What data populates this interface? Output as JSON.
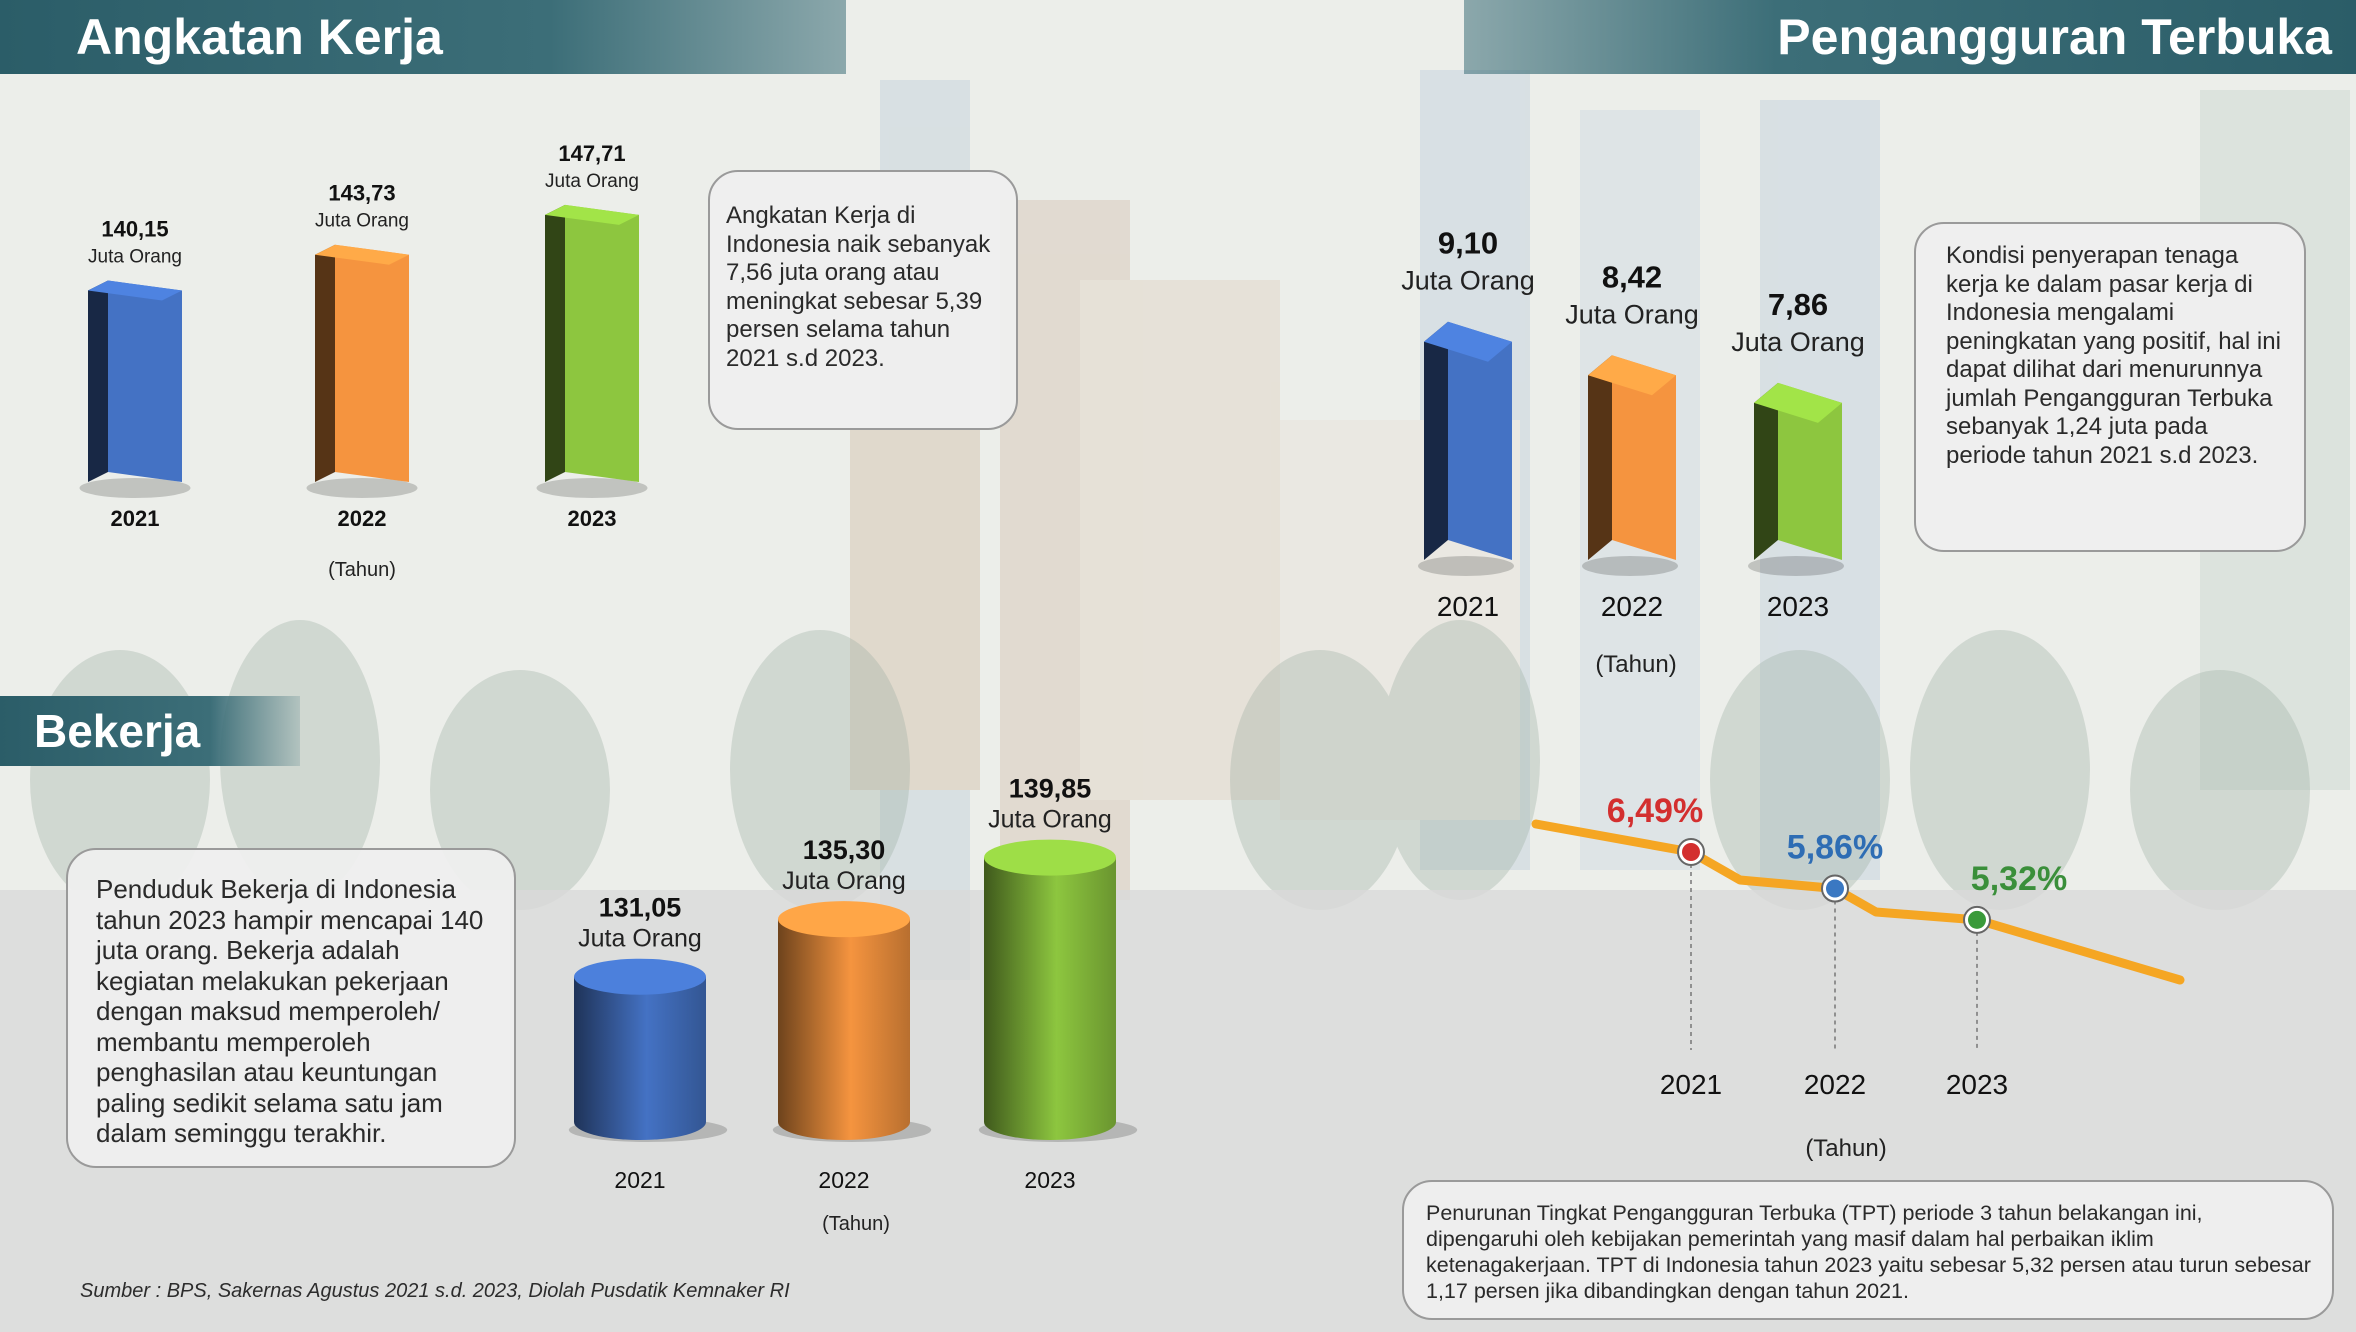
{
  "sections": {
    "labor_force_title": "Angkatan Kerja",
    "unemployment_title": "Pengangguran Terbuka",
    "employed_title": "Bekerja"
  },
  "notes": {
    "labor_force": "Angkatan Kerja di Indonesia naik sebanyak 7,56 juta orang atau meningkat sebesar 5,39 persen selama tahun 2021 s.d 2023.",
    "unemployment": "Kondisi penyerapan tenaga kerja ke dalam pasar kerja di Indonesia mengalami peningkatan yang positif, hal ini dapat dilihat dari menurunnya jumlah Pengangguran Terbuka sebanyak 1,24 juta pada periode tahun 2021 s.d 2023.",
    "employed": "Penduduk Bekerja di Indonesia tahun 2023 hampir mencapai 140 juta orang. Bekerja adalah kegiatan melakukan pekerjaan dengan maksud memperoleh/ membantu memperoleh penghasilan atau keuntungan paling sedikit selama satu jam dalam seminggu terakhir.",
    "tpt": "Penurunan Tingkat Pengangguran Terbuka (TPT) periode 3 tahun belakangan ini, dipengaruhi oleh kebijakan pemerintah yang masif dalam hal perbaikan iklim ketenagakerjaan. TPT di Indonesia tahun 2023 yaitu sebesar 5,32 persen atau turun sebesar 1,17 persen jika dibandingkan dengan tahun 2021."
  },
  "source": "Sumber : BPS, Sakernas Agustus 2021 s.d. 2023, Diolah Pusdatik Kemnaker RI",
  "colors": {
    "blue": "#4472c4",
    "orange": "#f5943f",
    "green": "#8dc63f",
    "header": "#336672",
    "red": "#d32f2f"
  },
  "chart_data": [
    {
      "id": "angkatan_kerja",
      "type": "bar",
      "categories": [
        "2021",
        "2022",
        "2023"
      ],
      "values": [
        140.15,
        143.73,
        147.71
      ],
      "value_labels": [
        "140,15",
        "143,73",
        "147,71"
      ],
      "unit_label": "Juta Orang",
      "xlabel": "(Tahun)",
      "ylim": [
        130,
        150
      ]
    },
    {
      "id": "pengangguran_terbuka",
      "type": "bar",
      "categories": [
        "2021",
        "2022",
        "2023"
      ],
      "values": [
        9.1,
        8.42,
        7.86
      ],
      "value_labels": [
        "9,10",
        "8,42",
        "7,86"
      ],
      "unit_label": "Juta Orang",
      "xlabel": "(Tahun)",
      "ylim": [
        6.5,
        9.5
      ]
    },
    {
      "id": "bekerja",
      "type": "bar",
      "categories": [
        "2021",
        "2022",
        "2023"
      ],
      "values": [
        131.05,
        135.3,
        139.85
      ],
      "value_labels": [
        "131,05",
        "135,30",
        "139,85"
      ],
      "unit_label": "Juta Orang",
      "xlabel": "(Tahun)",
      "ylim": [
        128,
        141
      ]
    },
    {
      "id": "tpt",
      "type": "line",
      "categories": [
        "2021",
        "2022",
        "2023"
      ],
      "values": [
        6.49,
        5.86,
        5.32
      ],
      "value_labels": [
        "6,49%",
        "5,86%",
        "5,32%"
      ],
      "xlabel": "(Tahun)"
    }
  ]
}
